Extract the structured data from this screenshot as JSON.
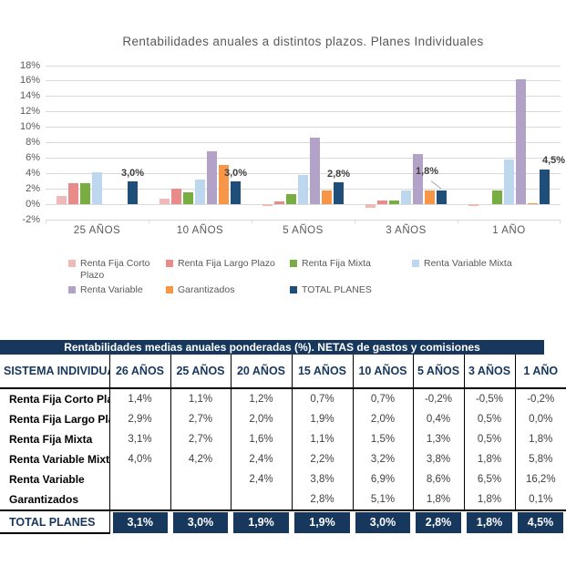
{
  "chart_data": {
    "type": "bar",
    "title": "Rentabilidades anuales a distintos plazos. Planes Individuales",
    "categories": [
      "25 AÑOS",
      "10 AÑOS",
      "5 AÑOS",
      "3 AÑOS",
      "1 AÑO"
    ],
    "series": [
      {
        "name": "Renta Fija Corto Plazo",
        "color": "#f0b9b8",
        "values": [
          1.1,
          0.7,
          -0.2,
          -0.5,
          -0.2
        ]
      },
      {
        "name": "Renta Fija Largo Plazo",
        "color": "#e88b8a",
        "values": [
          2.7,
          2.0,
          0.4,
          0.5,
          0.0
        ]
      },
      {
        "name": "Renta Fija Mixta",
        "color": "#77ad41",
        "values": [
          2.7,
          1.5,
          1.3,
          0.5,
          1.8
        ]
      },
      {
        "name": "Renta Variable Mixta",
        "color": "#bdd7ee",
        "values": [
          4.2,
          3.2,
          3.8,
          1.8,
          5.8
        ]
      },
      {
        "name": "Renta Variable",
        "color": "#b3a2c7",
        "values": [
          null,
          6.9,
          8.6,
          6.5,
          16.2
        ]
      },
      {
        "name": "Garantizados",
        "color": "#f79646",
        "values": [
          null,
          5.1,
          1.8,
          1.8,
          0.1
        ]
      },
      {
        "name": "TOTAL PLANES",
        "color": "#1f4e79",
        "values": [
          3.0,
          3.0,
          2.8,
          1.8,
          4.5
        ]
      }
    ],
    "total_labels": [
      "3,0%",
      "3,0%",
      "2,8%",
      "1,8%",
      "4,5%"
    ],
    "ylim": [
      -2,
      18
    ],
    "ytick_step": 2,
    "ytick_suffix": "%",
    "grid": true,
    "legend_position": "bottom"
  },
  "table": {
    "title": "Rentabilidades medias anuales ponderadas (%). NETAS de gastos y comisiones",
    "header": [
      "SISTEMA INDIVIDUAL",
      "26 AÑOS",
      "25 AÑOS",
      "20 AÑOS",
      "15 AÑOS",
      "10 AÑOS",
      "5 AÑOS",
      "3 AÑOS",
      "1 AÑO"
    ],
    "rows": [
      {
        "label": "Renta Fija Corto Plazo",
        "values": [
          "1,4%",
          "1,1%",
          "1,2%",
          "0,7%",
          "0,7%",
          "-0,2%",
          "-0,5%",
          "-0,2%"
        ]
      },
      {
        "label": "Renta Fija Largo Plazo",
        "values": [
          "2,9%",
          "2,7%",
          "2,0%",
          "1,9%",
          "2,0%",
          "0,4%",
          "0,5%",
          "0,0%"
        ]
      },
      {
        "label": "Renta Fija Mixta",
        "values": [
          "3,1%",
          "2,7%",
          "1,6%",
          "1,1%",
          "1,5%",
          "1,3%",
          "0,5%",
          "1,8%"
        ]
      },
      {
        "label": "Renta Variable Mixta",
        "values": [
          "4,0%",
          "4,2%",
          "2,4%",
          "2,2%",
          "3,2%",
          "3,8%",
          "1,8%",
          "5,8%"
        ]
      },
      {
        "label": "Renta Variable",
        "values": [
          "",
          "",
          "2,4%",
          "3,8%",
          "6,9%",
          "8,6%",
          "6,5%",
          "16,2%"
        ]
      },
      {
        "label": "Garantizados",
        "values": [
          "",
          "",
          "",
          "2,8%",
          "5,1%",
          "1,8%",
          "1,8%",
          "0,1%"
        ]
      }
    ],
    "total": {
      "label": "TOTAL PLANES",
      "values": [
        "3,1%",
        "3,0%",
        "1,9%",
        "1,9%",
        "3,0%",
        "2,8%",
        "1,8%",
        "4,5%"
      ]
    }
  },
  "colors": {
    "table_navy": "#17375d",
    "bar_navy": "#1f4e79",
    "grid": "#d9d9d9",
    "axis_text": "#595959",
    "value_text": "#404040"
  }
}
